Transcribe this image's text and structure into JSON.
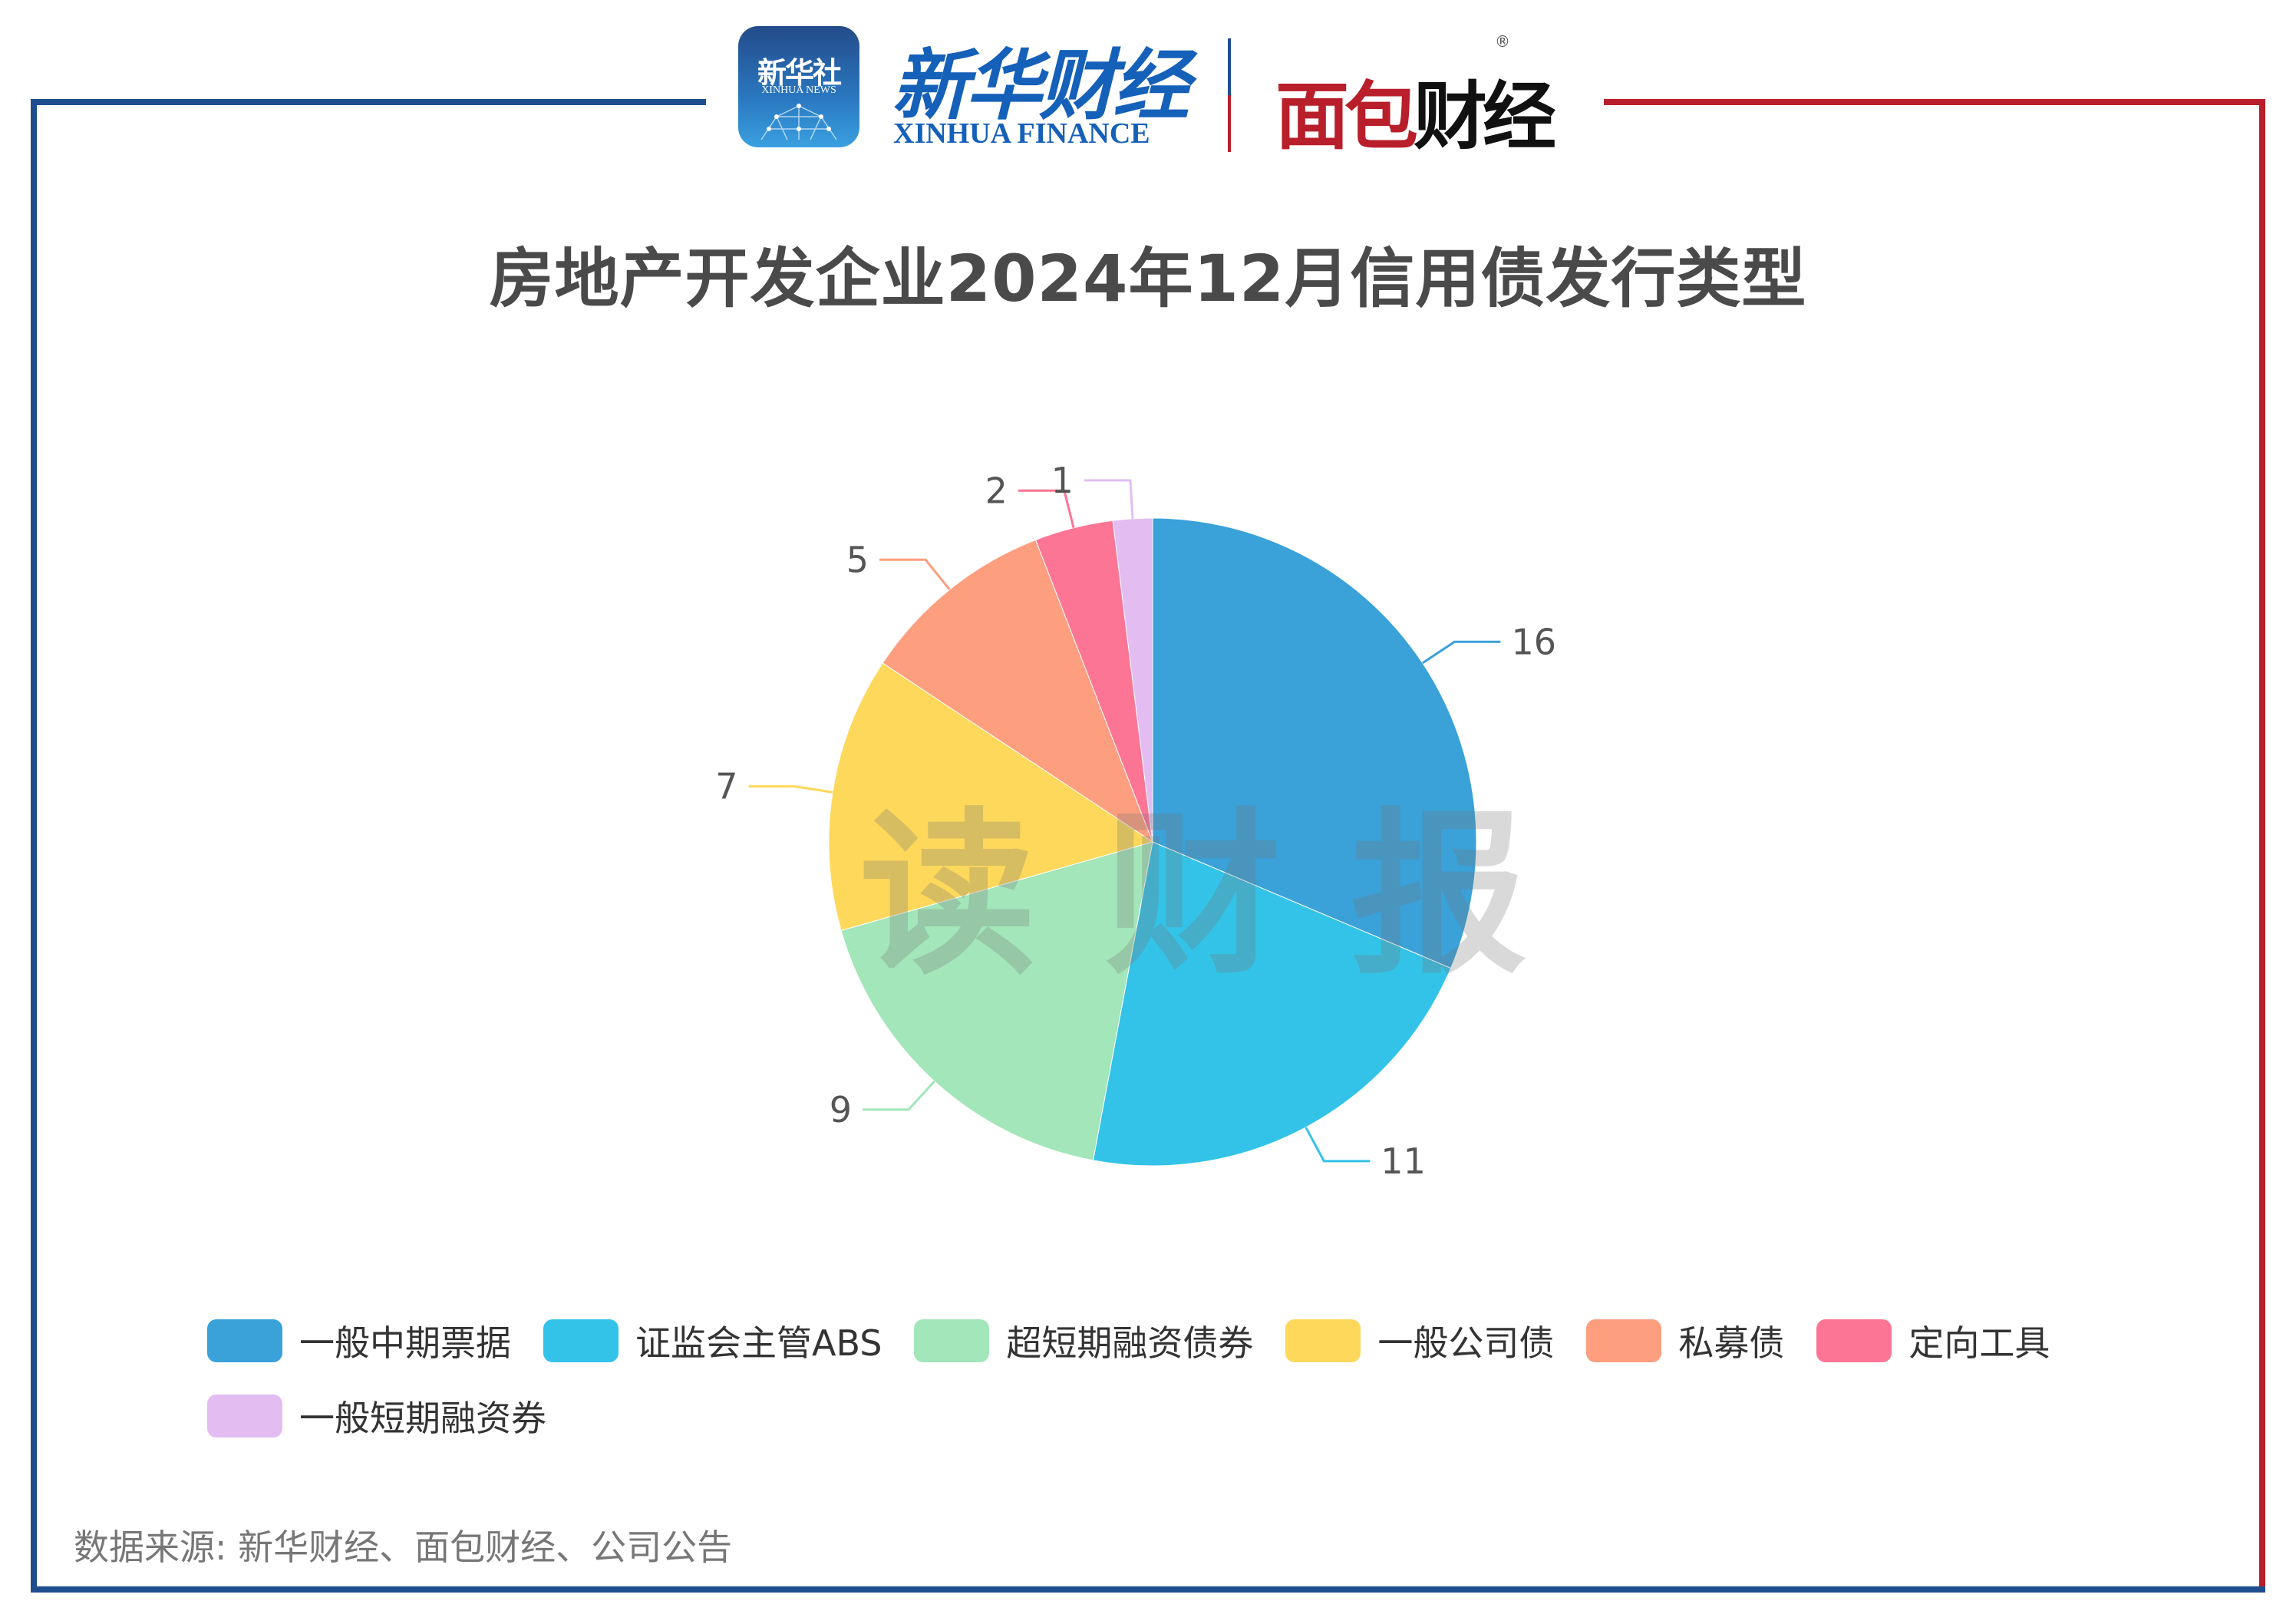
{
  "header": {
    "xinhua_app_cn": "新华社",
    "xinhua_app_en": "XINHUA NEWS",
    "xinhua_finance_cn": "新华财经",
    "xinhua_finance_en": "XINHUA FINANCE",
    "mianbao_left": "面包",
    "mianbao_right": "财经",
    "registered_mark": "®"
  },
  "colors": {
    "frame_blue": "#1f4e8f",
    "frame_red": "#b81f2a"
  },
  "watermark": "读财报",
  "chart_data": {
    "type": "pie",
    "title": "房地产开发企业2024年12月信用债发行类型",
    "categories": [
      "一般中期票据",
      "证监会主管ABS",
      "超短期融资债券",
      "一般公司债",
      "私募债",
      "定向工具",
      "一般短期融资券"
    ],
    "values": [
      16,
      11,
      9,
      7,
      5,
      2,
      1
    ],
    "colors": [
      "#3aa1d9",
      "#33c3e8",
      "#a2e6b9",
      "#fdd85b",
      "#fd9f7f",
      "#fc7595",
      "#e3bdf2"
    ],
    "data_labels": [
      "16",
      "11",
      "9",
      "7",
      "5",
      "2",
      "1"
    ],
    "start_angle_deg": 90,
    "direction": "clockwise",
    "legend_position": "bottom"
  },
  "legend": {
    "items": [
      {
        "label": "一般中期票据",
        "color": "#3aa1d9"
      },
      {
        "label": "证监会主管ABS",
        "color": "#33c3e8"
      },
      {
        "label": "超短期融资债券",
        "color": "#a2e6b9"
      },
      {
        "label": "一般公司债",
        "color": "#fdd85b"
      },
      {
        "label": "私募债",
        "color": "#fd9f7f"
      },
      {
        "label": "定向工具",
        "color": "#fc7595"
      },
      {
        "label": "一般短期融资券",
        "color": "#e3bdf2"
      }
    ]
  },
  "footer": {
    "source": "数据来源: 新华财经、面包财经、公司公告"
  }
}
